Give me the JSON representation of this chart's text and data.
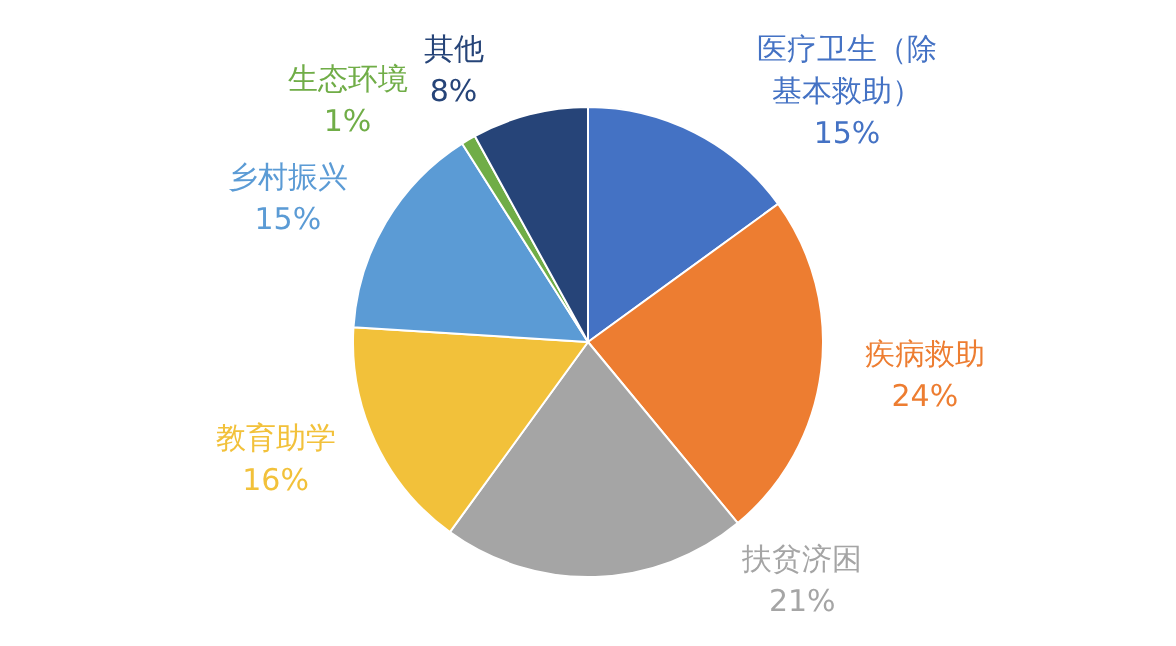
{
  "chart_data": {
    "type": "pie",
    "categories": [
      "医疗卫生（除基本救助）",
      "疾病救助",
      "扶贫济困",
      "教育助学",
      "乡村振兴",
      "生态环境",
      "其他"
    ],
    "values": [
      15,
      24,
      21,
      16,
      15,
      1,
      8
    ],
    "colors": [
      "#4472c4",
      "#ed7d31",
      "#a5a5a5",
      "#f2c13a",
      "#5b9bd5",
      "#70ad47",
      "#264478"
    ],
    "value_labels": [
      "15%",
      "24%",
      "21%",
      "16%",
      "15%",
      "1%",
      "8%"
    ],
    "legend": false
  }
}
